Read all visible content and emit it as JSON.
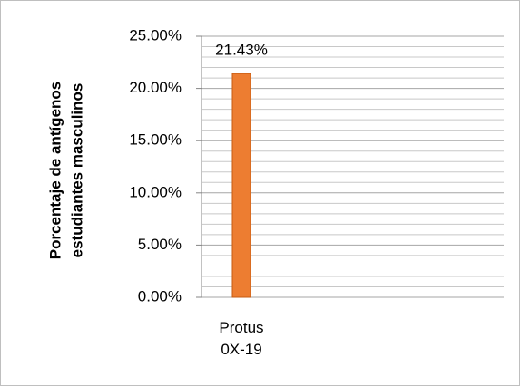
{
  "chart_data": {
    "type": "bar",
    "ylabel": [
      "Porcentaje de antígenos",
      "estudiantes  masculinos"
    ],
    "categories": [
      "Protus 0X-19"
    ],
    "values": [
      21.43
    ],
    "value_labels": [
      "21.43%"
    ],
    "color": "#ed7d31",
    "ylim": [
      0,
      25
    ],
    "yticks": [
      {
        "value": 0,
        "label": "0.00%"
      },
      {
        "value": 5,
        "label": "5.00%"
      },
      {
        "value": 10,
        "label": "10.00%"
      },
      {
        "value": 15,
        "label": "15.00%"
      },
      {
        "value": 20,
        "label": "20.00%"
      },
      {
        "value": 25,
        "label": "25.00%"
      }
    ],
    "minor_yticks": [
      1,
      2,
      3,
      4,
      6,
      7,
      8,
      9,
      11,
      12,
      13,
      14,
      16,
      17,
      18,
      19,
      21,
      22,
      23,
      24
    ],
    "grid": true
  }
}
